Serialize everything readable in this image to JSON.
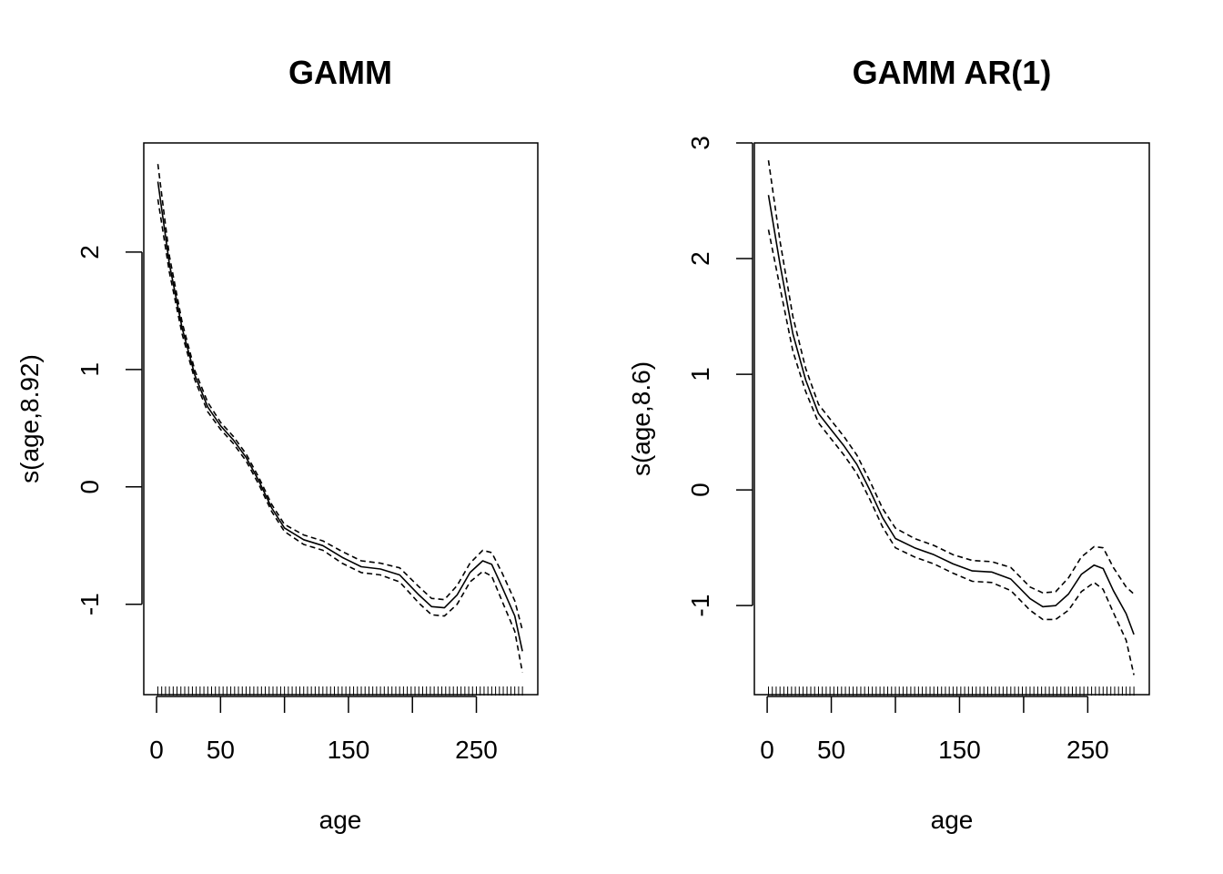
{
  "chart_data": [
    {
      "type": "line",
      "title": "GAMM",
      "xlabel": "age",
      "ylabel": "s(age,8.92)",
      "xlim": [
        -10,
        298
      ],
      "ylim": [
        -1.77,
        2.93
      ],
      "x_ticks": [
        0,
        50,
        100,
        150,
        200,
        250
      ],
      "x_tick_labels": [
        "0",
        "50",
        "",
        "150",
        "",
        "250"
      ],
      "y_ticks": [
        -1,
        0,
        1,
        2
      ],
      "y_tick_labels": [
        "-1",
        "0",
        "1",
        "2"
      ],
      "rug": {
        "from": 1,
        "to": 286,
        "step": 3,
        "y": -1.7
      },
      "series": [
        {
          "style": "solid",
          "x": [
            1,
            10,
            20,
            30,
            40,
            50,
            60,
            70,
            80,
            90,
            100,
            115,
            130,
            145,
            160,
            175,
            190,
            205,
            215,
            225,
            235,
            245,
            255,
            262,
            270,
            280,
            286
          ],
          "y": [
            2.6,
            1.9,
            1.35,
            0.95,
            0.68,
            0.52,
            0.4,
            0.25,
            0.05,
            -0.18,
            -0.35,
            -0.45,
            -0.5,
            -0.6,
            -0.68,
            -0.7,
            -0.75,
            -0.92,
            -1.02,
            -1.03,
            -0.92,
            -0.73,
            -0.63,
            -0.66,
            -0.85,
            -1.1,
            -1.4
          ]
        },
        {
          "style": "dashed",
          "x": [
            1,
            10,
            20,
            30,
            40,
            50,
            60,
            70,
            80,
            90,
            100,
            115,
            130,
            145,
            160,
            175,
            190,
            205,
            215,
            225,
            235,
            245,
            255,
            262,
            270,
            280,
            286
          ],
          "y": [
            2.75,
            1.97,
            1.4,
            0.99,
            0.72,
            0.55,
            0.43,
            0.28,
            0.08,
            -0.15,
            -0.32,
            -0.41,
            -0.46,
            -0.55,
            -0.63,
            -0.65,
            -0.69,
            -0.85,
            -0.95,
            -0.96,
            -0.84,
            -0.65,
            -0.54,
            -0.56,
            -0.73,
            -0.97,
            -1.22
          ]
        },
        {
          "style": "dashed",
          "x": [
            1,
            10,
            20,
            30,
            40,
            50,
            60,
            70,
            80,
            90,
            100,
            115,
            130,
            145,
            160,
            175,
            190,
            205,
            215,
            225,
            235,
            245,
            255,
            262,
            270,
            280,
            286
          ],
          "y": [
            2.45,
            1.83,
            1.3,
            0.91,
            0.64,
            0.49,
            0.37,
            0.22,
            0.02,
            -0.21,
            -0.38,
            -0.49,
            -0.54,
            -0.65,
            -0.73,
            -0.75,
            -0.81,
            -0.99,
            -1.09,
            -1.1,
            -1.0,
            -0.81,
            -0.72,
            -0.76,
            -0.97,
            -1.23,
            -1.58
          ]
        }
      ]
    },
    {
      "type": "line",
      "title": "GAMM AR(1)",
      "xlabel": "age",
      "ylabel": "s(age,8.6)",
      "xlim": [
        -10,
        298
      ],
      "ylim": [
        -1.77,
        3.0
      ],
      "x_ticks": [
        0,
        50,
        100,
        150,
        200,
        250
      ],
      "x_tick_labels": [
        "0",
        "50",
        "",
        "150",
        "",
        "250"
      ],
      "y_ticks": [
        -1,
        0,
        1,
        2,
        3
      ],
      "y_tick_labels": [
        "-1",
        "0",
        "1",
        "2",
        "3"
      ],
      "rug": {
        "from": 1,
        "to": 286,
        "step": 3,
        "y": -1.7
      },
      "series": [
        {
          "style": "solid",
          "x": [
            1,
            10,
            20,
            30,
            40,
            50,
            60,
            70,
            80,
            90,
            100,
            115,
            130,
            145,
            160,
            175,
            190,
            205,
            215,
            225,
            235,
            245,
            255,
            262,
            270,
            280,
            286
          ],
          "y": [
            2.55,
            1.95,
            1.35,
            0.95,
            0.66,
            0.52,
            0.38,
            0.22,
            0.0,
            -0.24,
            -0.42,
            -0.5,
            -0.56,
            -0.64,
            -0.7,
            -0.71,
            -0.77,
            -0.94,
            -1.01,
            -1.0,
            -0.9,
            -0.73,
            -0.65,
            -0.68,
            -0.87,
            -1.07,
            -1.25
          ]
        },
        {
          "style": "dashed",
          "x": [
            1,
            10,
            20,
            30,
            40,
            50,
            60,
            70,
            80,
            90,
            100,
            115,
            130,
            145,
            160,
            175,
            190,
            205,
            215,
            225,
            235,
            245,
            255,
            262,
            270,
            280,
            286
          ],
          "y": [
            2.85,
            2.15,
            1.5,
            1.05,
            0.74,
            0.6,
            0.46,
            0.3,
            0.08,
            -0.16,
            -0.33,
            -0.42,
            -0.48,
            -0.56,
            -0.61,
            -0.62,
            -0.67,
            -0.84,
            -0.89,
            -0.88,
            -0.76,
            -0.58,
            -0.49,
            -0.5,
            -0.67,
            -0.84,
            -0.9
          ]
        },
        {
          "style": "dashed",
          "x": [
            1,
            10,
            20,
            30,
            40,
            50,
            60,
            70,
            80,
            90,
            100,
            115,
            130,
            145,
            160,
            175,
            190,
            205,
            215,
            225,
            235,
            245,
            255,
            262,
            270,
            280,
            286
          ],
          "y": [
            2.25,
            1.75,
            1.2,
            0.85,
            0.58,
            0.44,
            0.3,
            0.14,
            -0.08,
            -0.32,
            -0.5,
            -0.58,
            -0.64,
            -0.72,
            -0.79,
            -0.8,
            -0.87,
            -1.04,
            -1.12,
            -1.12,
            -1.04,
            -0.88,
            -0.8,
            -0.86,
            -1.06,
            -1.3,
            -1.6
          ]
        }
      ]
    }
  ]
}
